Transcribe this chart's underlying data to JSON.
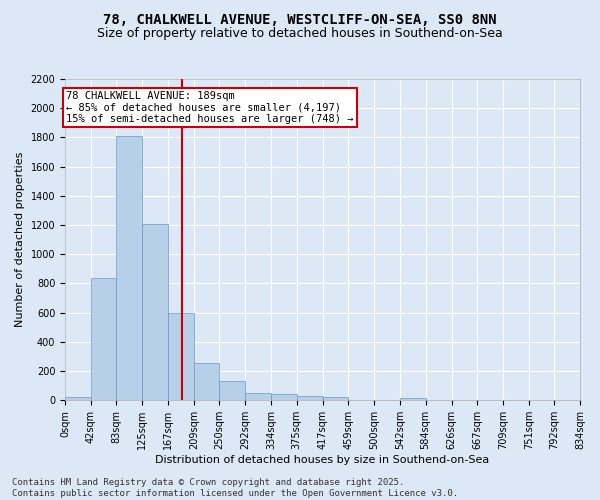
{
  "title1": "78, CHALKWELL AVENUE, WESTCLIFF-ON-SEA, SS0 8NN",
  "title2": "Size of property relative to detached houses in Southend-on-Sea",
  "xlabel": "Distribution of detached houses by size in Southend-on-Sea",
  "ylabel": "Number of detached properties",
  "bar_values": [
    25,
    840,
    1810,
    1210,
    600,
    255,
    130,
    50,
    45,
    30,
    20,
    0,
    0,
    15,
    0,
    0,
    0,
    0,
    0,
    0
  ],
  "bin_edges": [
    0,
    42,
    83,
    125,
    167,
    209,
    250,
    292,
    334,
    375,
    417,
    459,
    500,
    542,
    584,
    626,
    667,
    709,
    751,
    792,
    834
  ],
  "bin_labels": [
    "0sqm",
    "42sqm",
    "83sqm",
    "125sqm",
    "167sqm",
    "209sqm",
    "250sqm",
    "292sqm",
    "334sqm",
    "375sqm",
    "417sqm",
    "459sqm",
    "500sqm",
    "542sqm",
    "584sqm",
    "626sqm",
    "667sqm",
    "709sqm",
    "751sqm",
    "792sqm",
    "834sqm"
  ],
  "bar_color": "#b8cfe8",
  "bar_edge_color": "#6699cc",
  "vline_x": 189,
  "vline_color": "#cc0000",
  "annotation_line1": "78 CHALKWELL AVENUE: 189sqm",
  "annotation_line2": "← 85% of detached houses are smaller (4,197)",
  "annotation_line3": "15% of semi-detached houses are larger (748) →",
  "annotation_box_color": "#cc0000",
  "ylim": [
    0,
    2200
  ],
  "yticks": [
    0,
    200,
    400,
    600,
    800,
    1000,
    1200,
    1400,
    1600,
    1800,
    2000,
    2200
  ],
  "footnote1": "Contains HM Land Registry data © Crown copyright and database right 2025.",
  "footnote2": "Contains public sector information licensed under the Open Government Licence v3.0.",
  "background_color": "#dce8f5",
  "plot_bg_color": "#dce8f5",
  "grid_color": "#ffffff",
  "title_fontsize": 10,
  "subtitle_fontsize": 9,
  "axis_label_fontsize": 8,
  "tick_fontsize": 7,
  "annotation_fontsize": 7.5,
  "footnote_fontsize": 6.5
}
